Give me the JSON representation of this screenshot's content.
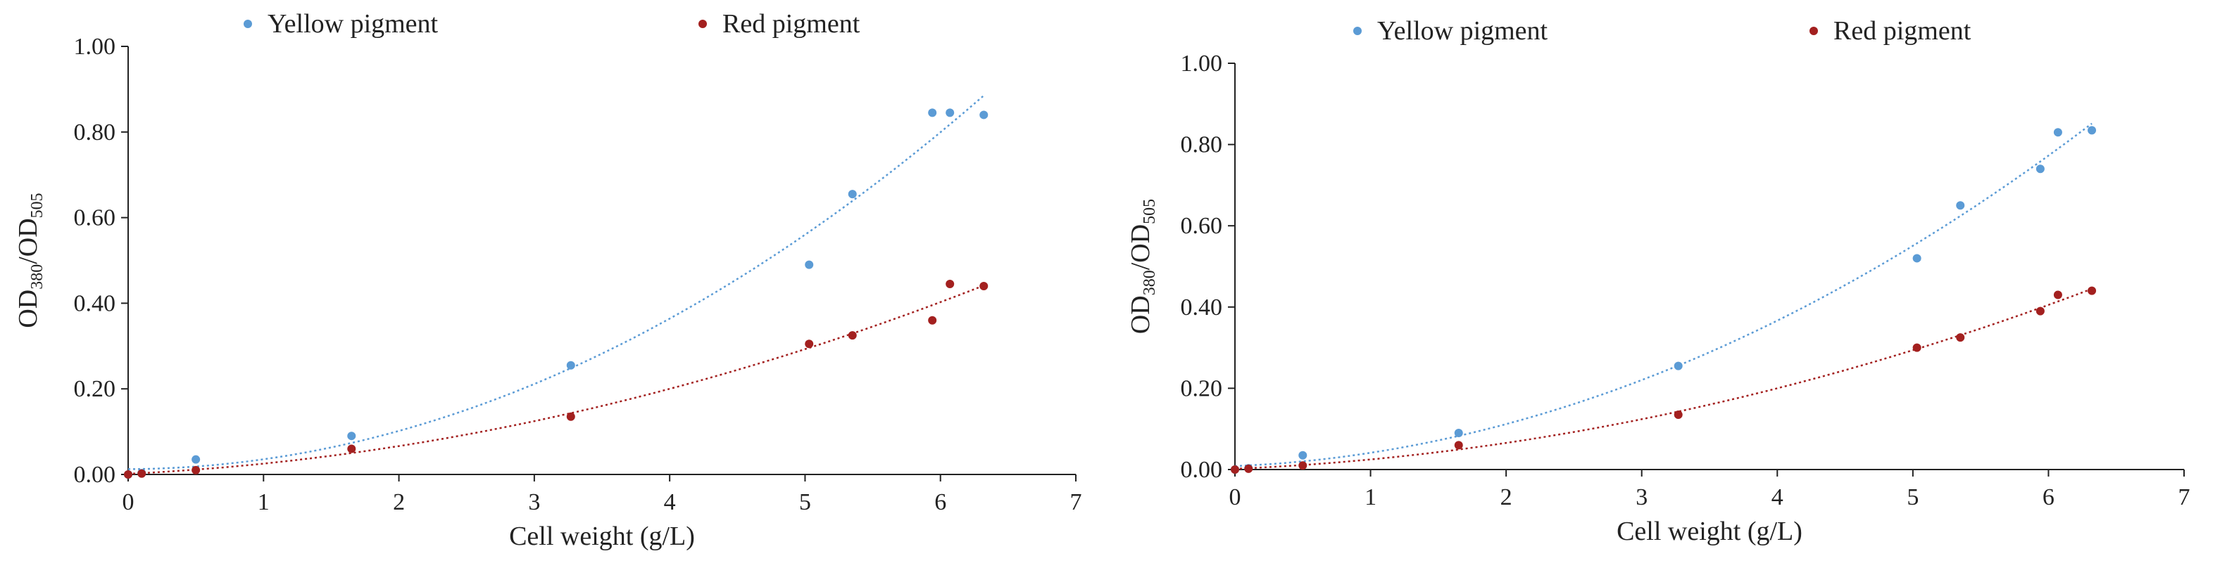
{
  "colors": {
    "yellow_series": "#5b9bd5",
    "red_series": "#a3201f",
    "axis": "#222222"
  },
  "chart_data": [
    {
      "type": "scatter",
      "xlabel": "Cell weight (g/L)",
      "ylabel": {
        "main": "OD",
        "sub1": "380",
        "sep": "/OD",
        "sub2": "505"
      },
      "xlim": [
        0,
        7
      ],
      "ylim": [
        0,
        1.0
      ],
      "xticks": [
        "0",
        "1",
        "2",
        "3",
        "4",
        "5",
        "6",
        "7"
      ],
      "yticks": [
        "0.00",
        "0.20",
        "0.40",
        "0.60",
        "0.80",
        "1.00"
      ],
      "legend_position": "top",
      "series": [
        {
          "name": "Yellow pigment",
          "color": "#5b9bd5",
          "trendline": "polynomial",
          "points": [
            [
              0,
              0.0
            ],
            [
              0.1,
              0.003
            ],
            [
              0.5,
              0.035
            ],
            [
              1.65,
              0.09
            ],
            [
              3.27,
              0.255
            ],
            [
              5.03,
              0.49
            ],
            [
              5.35,
              0.655
            ],
            [
              5.94,
              0.845
            ],
            [
              6.07,
              0.845
            ],
            [
              6.32,
              0.84
            ]
          ]
        },
        {
          "name": "Red pigment",
          "color": "#a3201f",
          "trendline": "polynomial",
          "points": [
            [
              0,
              0.0
            ],
            [
              0.1,
              0.002
            ],
            [
              0.5,
              0.01
            ],
            [
              1.65,
              0.06
            ],
            [
              3.27,
              0.135
            ],
            [
              5.03,
              0.305
            ],
            [
              5.35,
              0.325
            ],
            [
              5.94,
              0.36
            ],
            [
              6.07,
              0.445
            ],
            [
              6.32,
              0.44
            ]
          ]
        }
      ]
    },
    {
      "type": "scatter",
      "xlabel": "Cell weight (g/L)",
      "ylabel": {
        "main": "OD",
        "sub1": "380",
        "sep": "/OD",
        "sub2": "505"
      },
      "xlim": [
        0,
        7
      ],
      "ylim": [
        0,
        1.0
      ],
      "xticks": [
        "0",
        "1",
        "2",
        "3",
        "4",
        "5",
        "6",
        "7"
      ],
      "yticks": [
        "0.00",
        "0.20",
        "0.40",
        "0.60",
        "0.80",
        "1.00"
      ],
      "legend_position": "top",
      "series": [
        {
          "name": "Yellow pigment",
          "color": "#5b9bd5",
          "trendline": "polynomial",
          "points": [
            [
              0,
              0.0
            ],
            [
              0.1,
              0.003
            ],
            [
              0.5,
              0.035
            ],
            [
              1.65,
              0.09
            ],
            [
              3.27,
              0.255
            ],
            [
              5.03,
              0.52
            ],
            [
              5.35,
              0.65
            ],
            [
              5.94,
              0.74
            ],
            [
              6.07,
              0.83
            ],
            [
              6.32,
              0.835
            ]
          ]
        },
        {
          "name": "Red pigment",
          "color": "#a3201f",
          "trendline": "polynomial",
          "points": [
            [
              0,
              0.0
            ],
            [
              0.1,
              0.002
            ],
            [
              0.5,
              0.01
            ],
            [
              1.65,
              0.06
            ],
            [
              3.27,
              0.135
            ],
            [
              5.03,
              0.3
            ],
            [
              5.35,
              0.325
            ],
            [
              5.94,
              0.39
            ],
            [
              6.07,
              0.43
            ],
            [
              6.32,
              0.44
            ]
          ]
        }
      ]
    }
  ]
}
